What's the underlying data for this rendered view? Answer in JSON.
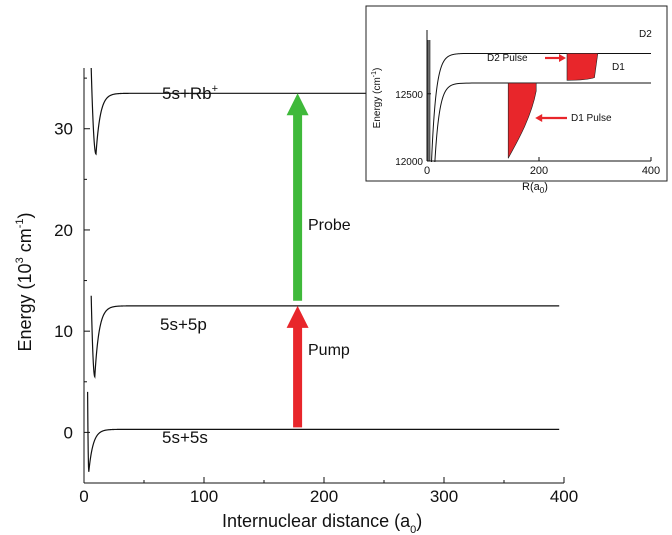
{
  "chart_data": [
    {
      "type": "line",
      "xlabel": "Internuclear distance  (a",
      "xlabel_subscript": "0",
      "xlabel_close": ")",
      "ylabel": "Energy (10",
      "ylabel_sup": "3",
      "ylabel_unit": " cm",
      "ylabel_sup2": "-1",
      "ylabel_close": ")",
      "xlim": [
        0,
        400
      ],
      "ylim": [
        -5,
        36
      ],
      "xticks": [
        0,
        100,
        200,
        300,
        400
      ],
      "yticks": [
        0,
        10,
        20,
        30
      ],
      "grid": false,
      "series": [
        {
          "label": "5s+5s",
          "asymptote": 0.3,
          "well_depth": -3.9,
          "well_x": 4,
          "start_x": 3,
          "start_y": 4
        },
        {
          "label": "5s+5p",
          "asymptote": 12.5,
          "well_depth": 5.5,
          "well_x": 9,
          "start_x": 6,
          "start_y": 13.5
        },
        {
          "label": "5s+Rb",
          "label_sup": "+",
          "asymptote": 33.5,
          "well_depth": 27.5,
          "well_x": 10,
          "start_x": 6,
          "start_y": 36
        }
      ],
      "arrows": [
        {
          "label": "Pump",
          "x": 178,
          "y_from": 0.5,
          "y_to": 12.5,
          "color": "#e8262b"
        },
        {
          "label": "Probe",
          "x": 178,
          "y_from": 13,
          "y_to": 33.5,
          "color": "#3fb93a"
        }
      ]
    },
    {
      "type": "line",
      "xlabel": "R(a",
      "xlabel_subscript": "0",
      "xlabel_close": ")",
      "ylabel": "Energy (cm",
      "ylabel_sup": "-1",
      "ylabel_close": ")",
      "xlim": [
        0,
        400
      ],
      "ylim": [
        12000,
        12900
      ],
      "xticks": [
        0,
        200,
        400
      ],
      "yticks": [
        12000,
        12500
      ],
      "series": [
        {
          "label": "D2",
          "asymptote": 12800
        },
        {
          "label": "D1",
          "asymptote": 12580
        }
      ],
      "pulses": [
        {
          "label": "D2 Pulse",
          "x_from": 250,
          "x_to": 305,
          "y_from": 12600,
          "y_to": 12800,
          "color": "#e8262b"
        },
        {
          "label": "D1 Pulse",
          "x_from": 145,
          "x_to": 195,
          "y_from": 12020,
          "y_to": 12580,
          "color": "#e8262b"
        }
      ]
    }
  ]
}
